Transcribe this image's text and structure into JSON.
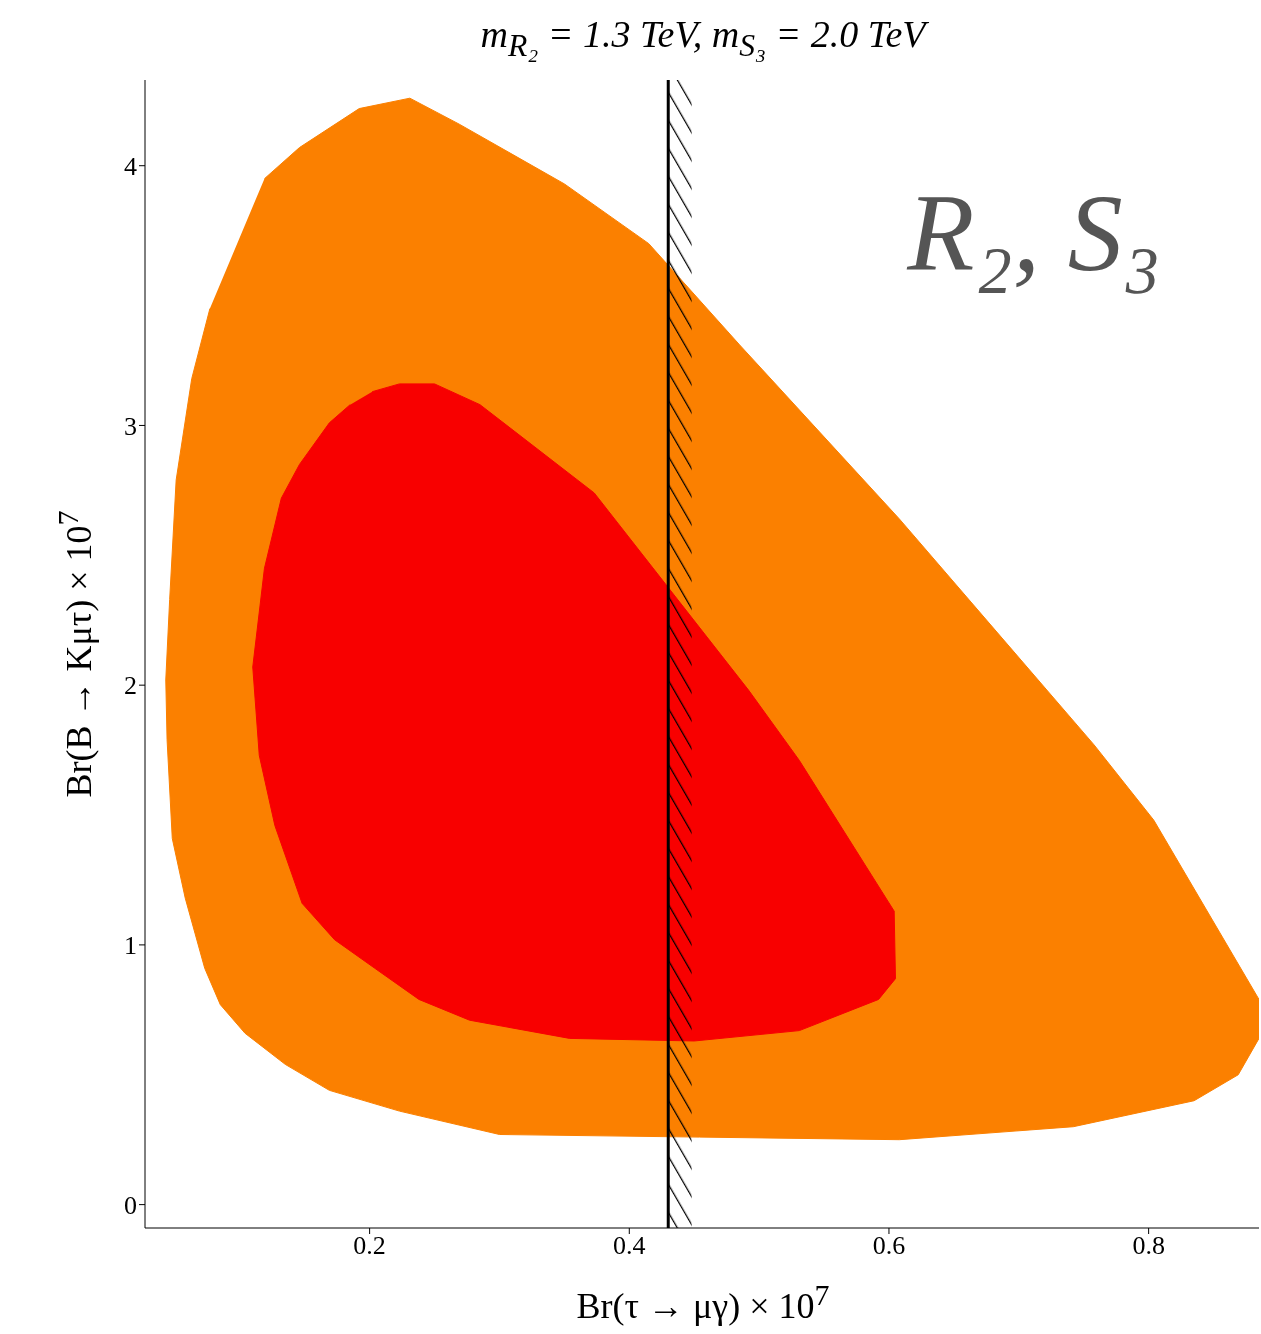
{
  "chart_data": {
    "type": "area",
    "title": "m$_{R₂}$ = 1.3 TeV, m$_{S₃}$ = 2.0 TeV",
    "xlabel": "Br(τ → μγ) × 10$^{7}$",
    "ylabel": "Br(B → Kμτ) × 10$^{7}$",
    "annotations": [
      "R₂, S₃"
    ],
    "xlim": [
      0.027,
      0.885
    ],
    "xticks": [
      0.2,
      0.4,
      0.6,
      0.8
    ],
    "ylim": [
      -0.09,
      4.33
    ],
    "yticks": [
      0,
      1,
      2,
      3,
      4
    ],
    "grid": false,
    "series": [
      {
        "color": "#fb8000",
        "x": [
          0.119,
          0.146,
          0.192,
          0.231,
          0.269,
          0.35,
          0.415,
          0.485,
          0.608,
          0.758,
          0.804,
          0.885,
          0.885,
          0.869,
          0.835,
          0.742,
          0.608,
          0.454,
          0.3,
          0.223,
          0.169,
          0.135,
          0.104,
          0.085,
          0.073,
          0.058,
          0.048,
          0.044,
          0.043,
          0.046,
          0.051,
          0.063,
          0.077
        ],
        "values": [
          3.95,
          4.07,
          4.22,
          4.26,
          4.16,
          3.93,
          3.7,
          3.31,
          2.64,
          1.77,
          1.48,
          0.79,
          0.64,
          0.5,
          0.4,
          0.3,
          0.25,
          0.26,
          0.27,
          0.36,
          0.44,
          0.54,
          0.66,
          0.77,
          0.91,
          1.18,
          1.41,
          1.79,
          2.02,
          2.33,
          2.79,
          3.18,
          3.45
        ]
      },
      {
        "color": "#f80000",
        "x": [
          0.202,
          0.223,
          0.25,
          0.285,
          0.373,
          0.492,
          0.531,
          0.604,
          0.605,
          0.592,
          0.531,
          0.45,
          0.354,
          0.277,
          0.238,
          0.204,
          0.173,
          0.148,
          0.127,
          0.115,
          0.11,
          0.119,
          0.132,
          0.146,
          0.169,
          0.185
        ],
        "values": [
          3.13,
          3.16,
          3.16,
          3.08,
          2.74,
          1.98,
          1.71,
          1.13,
          0.87,
          0.79,
          0.67,
          0.63,
          0.64,
          0.71,
          0.79,
          0.91,
          1.02,
          1.16,
          1.46,
          1.73,
          2.07,
          2.45,
          2.72,
          2.85,
          3.01,
          3.08
        ]
      }
    ],
    "ref_lines": [
      {
        "axis": "x",
        "value": 0.43,
        "color": "#000000"
      }
    ],
    "bands": [
      {
        "axis": "x",
        "from": 0.43,
        "to": 0.448,
        "color": "#000000"
      }
    ]
  }
}
